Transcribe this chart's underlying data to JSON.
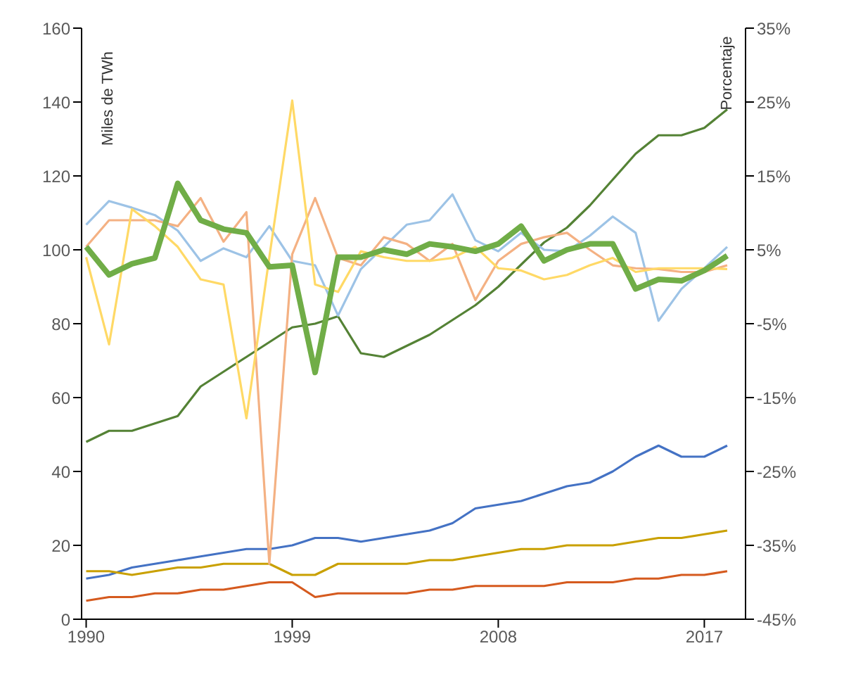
{
  "chart_data": {
    "type": "line",
    "ylabel": "Miles de TWh",
    "y2label": "Porcentaje",
    "x": [
      1990,
      1991,
      1992,
      1993,
      1994,
      1995,
      1996,
      1997,
      1998,
      1999,
      2000,
      2001,
      2002,
      2003,
      2004,
      2005,
      2006,
      2007,
      2008,
      2009,
      2010,
      2011,
      2012,
      2013,
      2014,
      2015,
      2016,
      2017,
      2018
    ],
    "xlim": [
      1989.8,
      2018.8
    ],
    "xticks": [
      1990,
      1999,
      2008,
      2017
    ],
    "ylim": [
      0,
      160
    ],
    "yticks": [
      0,
      20,
      40,
      60,
      80,
      100,
      120,
      140,
      160
    ],
    "y2lim": [
      -45,
      35
    ],
    "y2ticks": [
      {
        "value": -45,
        "label": "-45%"
      },
      {
        "value": -35,
        "label": "-35%"
      },
      {
        "value": -25,
        "label": "-25%"
      },
      {
        "value": -15,
        "label": "-15%"
      },
      {
        "value": -5,
        "label": "-5%"
      },
      {
        "value": 5,
        "label": "5%"
      },
      {
        "value": 15,
        "label": "15%"
      },
      {
        "value": 25,
        "label": "25%"
      },
      {
        "value": 35,
        "label": "35%"
      }
    ],
    "grid": false,
    "legend": false,
    "marker": "none",
    "line_style": "solid",
    "series": [
      {
        "color": "#548235",
        "values": [
          48,
          51,
          51,
          53,
          55,
          63,
          67,
          71,
          75,
          79,
          80,
          82,
          72,
          71,
          74,
          77,
          81,
          85,
          90,
          96,
          102,
          106,
          112,
          119,
          126,
          131,
          131,
          133,
          138
        ]
      },
      {
        "color": "#4472c4",
        "values": [
          11,
          12,
          14,
          15,
          16,
          17,
          18,
          19,
          19,
          20,
          22,
          22,
          21,
          22,
          23,
          24,
          26,
          30,
          31,
          32,
          34,
          36,
          37,
          40,
          44,
          47,
          44,
          44,
          47
        ]
      },
      {
        "color": "#c9a000",
        "values": [
          13,
          13,
          12,
          13,
          14,
          14,
          15,
          15,
          15,
          12,
          12,
          15,
          15,
          15,
          15,
          16,
          16,
          17,
          18,
          19,
          19,
          20,
          20,
          20,
          21,
          22,
          22,
          23,
          24
        ]
      },
      {
        "color": "#d55a1e",
        "values": [
          5,
          6,
          6,
          7,
          7,
          8,
          8,
          9,
          10,
          10,
          6,
          7,
          7,
          7,
          7,
          8,
          8,
          9,
          9,
          9,
          9,
          10,
          10,
          10,
          11,
          11,
          12,
          12,
          13
        ]
      },
      {
        "color": "#9dc3e6",
        "axis": "y2",
        "values": [
          8.4,
          11.6,
          10.7,
          9.7,
          7.6,
          3.5,
          5.2,
          4,
          8.2,
          3.5,
          2.9,
          -3.9,
          2.4,
          5.4,
          8.4,
          9,
          12.5,
          6.3,
          4.8,
          7.3,
          5,
          4.8,
          6.9,
          9.5,
          7.3,
          -4.6,
          -0.3,
          2.5,
          5.4
        ]
      },
      {
        "color": "#f4b183",
        "axis": "y2",
        "values": [
          5.4,
          9,
          9,
          9,
          8.2,
          12,
          6.1,
          10.1,
          -37.5,
          4.4,
          12,
          3.9,
          2.9,
          6.7,
          5.8,
          3.5,
          5.8,
          -1.8,
          3.5,
          5.8,
          6.7,
          7.3,
          5,
          2.9,
          2.5,
          2.4,
          2,
          2,
          2.9
        ]
      },
      {
        "color": "#ffd966",
        "axis": "y2",
        "values": [
          4,
          -7.8,
          10.5,
          8.2,
          5.4,
          1,
          0.3,
          -17.8,
          4,
          25.2,
          0.3,
          -0.7,
          4.8,
          4,
          3.5,
          3.5,
          3.9,
          5.4,
          2.5,
          2.2,
          1,
          1.6,
          2.9,
          3.9,
          2,
          2.5,
          2.5,
          2.5,
          2.4
        ]
      },
      {
        "color": "#70ad47",
        "axis": "y2",
        "values": [
          5.4,
          1.6,
          3.1,
          3.9,
          14,
          9,
          7.8,
          7.3,
          2.7,
          2.9,
          -11.6,
          4,
          4,
          5,
          4.4,
          5.8,
          5.4,
          4.8,
          5.8,
          8.2,
          3.5,
          5,
          5.8,
          5.8,
          -0.3,
          1,
          0.8,
          2.2,
          4.2
        ]
      }
    ]
  }
}
